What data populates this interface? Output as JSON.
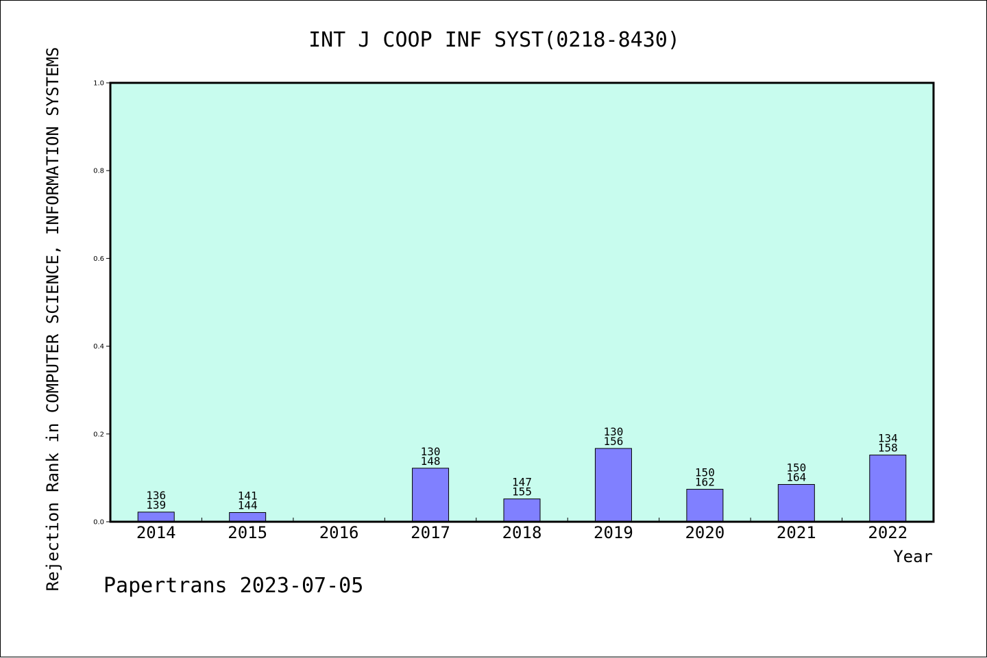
{
  "chart_data": {
    "type": "bar",
    "title": "INT J COOP INF SYST(0218-8430)",
    "xlabel": "Year",
    "ylabel": "Rejection Rank in COMPUTER SCIENCE, INFORMATION SYSTEMS",
    "ylim": [
      0,
      1.0
    ],
    "yticks": [
      "0.0",
      "0.2",
      "0.4",
      "0.6",
      "0.8",
      "1.0"
    ],
    "categories": [
      "2014",
      "2015",
      "2016",
      "2017",
      "2018",
      "2019",
      "2020",
      "2021",
      "2022"
    ],
    "values": [
      0.022,
      0.021,
      null,
      0.122,
      0.052,
      0.167,
      0.074,
      0.085,
      0.152
    ],
    "data_labels": [
      [
        "136",
        "139"
      ],
      [
        "141",
        "144"
      ],
      null,
      [
        "130",
        "148"
      ],
      [
        "147",
        "155"
      ],
      [
        "130",
        "156"
      ],
      [
        "150",
        "162"
      ],
      [
        "150",
        "164"
      ],
      [
        "134",
        "158"
      ]
    ],
    "grid": false,
    "colors": {
      "plot_background": "#c8fcee",
      "bar_fill": "#8080ff",
      "bar_stroke": "#000000"
    }
  },
  "footer": {
    "text": "Papertrans 2023-07-05"
  }
}
